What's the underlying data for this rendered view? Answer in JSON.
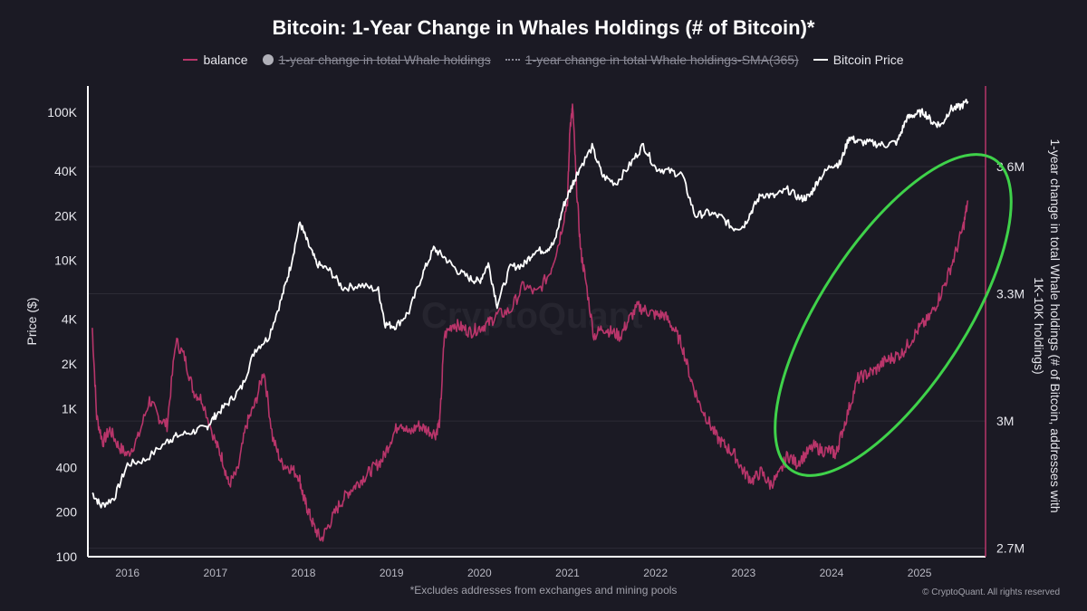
{
  "chart_data": {
    "type": "line",
    "title": "Bitcoin: 1-Year Change in Whales Holdings (# of Bitcoin)*",
    "legend": [
      {
        "name": "balance",
        "color": "#b8356a",
        "marker": "line",
        "hidden": false
      },
      {
        "name": "1-year change in total Whale holdings",
        "color": "#b0b0b8",
        "marker": "dot",
        "hidden": true
      },
      {
        "name": "1-year change in total Whale holdings-SMA(365)",
        "color": "#8a8a96",
        "marker": "dash",
        "hidden": true
      },
      {
        "name": "Bitcoin Price",
        "color": "#ffffff",
        "marker": "line",
        "hidden": false
      }
    ],
    "ylabel_left": "Price ($)",
    "ylabel_right": "1-year change in total Whale holdings (# of Bitcoin, addresses with 1K-10K holdings)",
    "y_left_scale": "log",
    "y_left_ticks": [
      "100K",
      "40K",
      "20K",
      "10K",
      "4K",
      "2K",
      "1K",
      "400",
      "200",
      "100"
    ],
    "y_left_tick_values": [
      100000,
      40000,
      20000,
      10000,
      4000,
      2000,
      1000,
      400,
      200,
      100
    ],
    "y_left_range": [
      100,
      150000
    ],
    "y_right_ticks": [
      "3.6M",
      "3.3M",
      "3M",
      "2.7M"
    ],
    "y_right_tick_values": [
      3600000,
      3300000,
      3000000,
      2700000
    ],
    "y_right_range": [
      2680000,
      3790000
    ],
    "x_ticks": [
      "2016",
      "2017",
      "2018",
      "2019",
      "2020",
      "2021",
      "2022",
      "2023",
      "2024",
      "2025"
    ],
    "x_range": [
      2015.55,
      2025.75
    ],
    "grid": true,
    "legend_position": "top-center",
    "series": [
      {
        "name": "Bitcoin Price",
        "color": "#ffffff",
        "x": [
          2015.6,
          2015.7,
          2015.85,
          2016.0,
          2016.2,
          2016.45,
          2016.55,
          2016.75,
          2016.9,
          2017.0,
          2017.15,
          2017.3,
          2017.45,
          2017.6,
          2017.75,
          2017.85,
          2017.96,
          2018.05,
          2018.15,
          2018.3,
          2018.45,
          2018.65,
          2018.85,
          2018.93,
          2019.05,
          2019.2,
          2019.35,
          2019.48,
          2019.6,
          2019.75,
          2019.9,
          2020.0,
          2020.1,
          2020.2,
          2020.35,
          2020.5,
          2020.62,
          2020.75,
          2020.85,
          2020.95,
          2021.05,
          2021.12,
          2021.28,
          2021.4,
          2021.55,
          2021.72,
          2021.86,
          2022.0,
          2022.15,
          2022.3,
          2022.45,
          2022.6,
          2022.75,
          2022.88,
          2023.0,
          2023.1,
          2023.2,
          2023.35,
          2023.5,
          2023.65,
          2023.75,
          2023.85,
          2024.0,
          2024.1,
          2024.2,
          2024.3,
          2024.45,
          2024.6,
          2024.75,
          2024.85,
          2024.95,
          2025.05,
          2025.15,
          2025.25,
          2025.35,
          2025.45,
          2025.55
        ],
        "values": [
          270,
          220,
          250,
          420,
          450,
          600,
          650,
          700,
          750,
          900,
          1100,
          1400,
          2500,
          3000,
          5500,
          9000,
          18000,
          13000,
          9500,
          8500,
          6500,
          6800,
          6300,
          3700,
          3600,
          4500,
          8000,
          12000,
          10500,
          8500,
          7500,
          7200,
          9500,
          5000,
          9000,
          9300,
          11500,
          11800,
          13000,
          23000,
          32000,
          40000,
          58000,
          37000,
          33000,
          45000,
          60000,
          42000,
          40000,
          38000,
          20000,
          21000,
          19500,
          16500,
          17000,
          22000,
          28000,
          27000,
          30000,
          26000,
          27000,
          35000,
          44000,
          45000,
          68000,
          63000,
          62000,
          60000,
          63000,
          90000,
          97000,
          100000,
          85000,
          82000,
          105000,
          108000,
          118000
        ]
      },
      {
        "name": "balance",
        "color": "#b8356a",
        "x": [
          2015.6,
          2015.65,
          2015.72,
          2015.8,
          2015.9,
          2016.0,
          2016.12,
          2016.25,
          2016.35,
          2016.45,
          2016.55,
          2016.65,
          2016.75,
          2016.85,
          2017.0,
          2017.08,
          2017.15,
          2017.25,
          2017.35,
          2017.45,
          2017.55,
          2017.65,
          2017.75,
          2017.85,
          2017.95,
          2018.0,
          2018.05,
          2018.12,
          2018.2,
          2018.3,
          2018.4,
          2018.5,
          2018.6,
          2018.7,
          2018.8,
          2018.9,
          2019.0,
          2019.1,
          2019.2,
          2019.3,
          2019.4,
          2019.5,
          2019.55,
          2019.6,
          2019.7,
          2019.8,
          2019.9,
          2020.0,
          2020.1,
          2020.2,
          2020.35,
          2020.5,
          2020.65,
          2020.8,
          2020.9,
          2021.0,
          2021.03,
          2021.06,
          2021.1,
          2021.15,
          2021.2,
          2021.3,
          2021.4,
          2021.5,
          2021.6,
          2021.7,
          2021.8,
          2021.9,
          2022.0,
          2022.1,
          2022.2,
          2022.3,
          2022.4,
          2022.5,
          2022.6,
          2022.7,
          2022.8,
          2022.9,
          2023.0,
          2023.1,
          2023.2,
          2023.3,
          2023.4,
          2023.5,
          2023.6,
          2023.7,
          2023.8,
          2023.9,
          2024.0,
          2024.05,
          2024.1,
          2024.2,
          2024.3,
          2024.4,
          2024.5,
          2024.6,
          2024.7,
          2024.8,
          2024.9,
          2025.0,
          2025.1,
          2025.2,
          2025.3,
          2025.4,
          2025.5,
          2025.55
        ],
        "values": [
          3220000,
          3010000,
          2950000,
          2980000,
          2940000,
          2920000,
          2960000,
          3050000,
          3010000,
          2990000,
          3190000,
          3150000,
          3070000,
          3050000,
          2950000,
          2910000,
          2850000,
          2880000,
          2990000,
          3040000,
          3120000,
          2960000,
          2900000,
          2890000,
          2870000,
          2820000,
          2790000,
          2750000,
          2720000,
          2760000,
          2800000,
          2830000,
          2850000,
          2870000,
          2890000,
          2910000,
          2960000,
          3000000,
          2970000,
          2990000,
          2980000,
          2970000,
          3000000,
          3200000,
          3230000,
          3220000,
          3210000,
          3220000,
          3230000,
          3250000,
          3260000,
          3320000,
          3300000,
          3350000,
          3420000,
          3520000,
          3700000,
          3740000,
          3560000,
          3400000,
          3340000,
          3200000,
          3220000,
          3210000,
          3200000,
          3240000,
          3270000,
          3260000,
          3250000,
          3250000,
          3220000,
          3180000,
          3100000,
          3040000,
          3000000,
          2960000,
          2940000,
          2920000,
          2880000,
          2860000,
          2880000,
          2850000,
          2870000,
          2920000,
          2900000,
          2920000,
          2940000,
          2930000,
          2930000,
          2920000,
          2960000,
          3030000,
          3100000,
          3110000,
          3120000,
          3140000,
          3150000,
          3160000,
          3190000,
          3220000,
          3240000,
          3280000,
          3330000,
          3390000,
          3460000,
          3520000
        ]
      }
    ],
    "footnote": "*Excludes addresses from exchanges and mining pools",
    "copyright": "© CryptoQuant. All rights reserved",
    "watermark": "CryptoQuant",
    "annotation": {
      "type": "ellipse",
      "color": "#3fd24a"
    }
  }
}
